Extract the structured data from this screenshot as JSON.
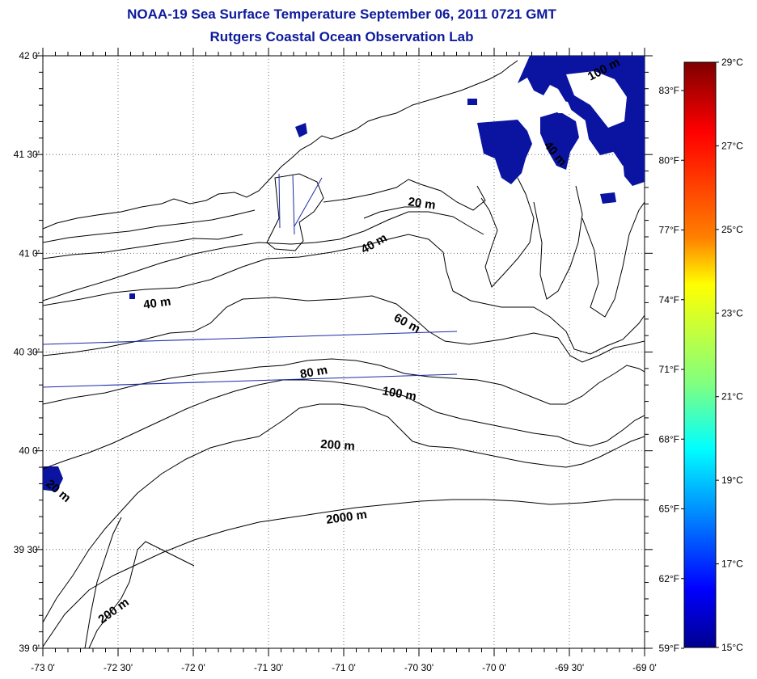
{
  "title": "NOAA-19 Sea Surface Temperature September 06, 2011 0721 GMT",
  "subtitle": "Rutgers Coastal Ocean Observation Lab",
  "latitude_labels": [
    "42 0'",
    "41 30'",
    "41 0'",
    "40 30'",
    "40 0'",
    "39 30'",
    "39 0'"
  ],
  "longitude_labels": [
    "-73 0'",
    "-72 30'",
    "-72 0'",
    "-71 30'",
    "-71 0'",
    "-70 30'",
    "-70 0'",
    "-69 30'",
    "-69 0'"
  ],
  "depth_contour_labels": [
    "20 m",
    "40 m",
    "40 m",
    "60 m",
    "80 m",
    "100 m",
    "200 m",
    "2000 m",
    "200 m",
    "100 m",
    "40 m",
    "20 m"
  ],
  "colorbar": {
    "celsius_labels": [
      "29°C",
      "27°C",
      "25°C",
      "23°C",
      "21°C",
      "19°C",
      "17°C",
      "15°C"
    ],
    "fahrenheit_labels": [
      "83°F",
      "80°F",
      "77°F",
      "74°F",
      "71°F",
      "68°F",
      "65°F",
      "62°F",
      "59°F"
    ],
    "colors": [
      "#7f0000",
      "#ff0000",
      "#ff8000",
      "#ffff00",
      "#80ff80",
      "#00ffff",
      "#0080ff",
      "#0000ff",
      "#00008f"
    ]
  },
  "colors": {
    "title": "#0d1a9c",
    "cloud_pixels": "#0a14a0",
    "transect": "#1a2aa8"
  }
}
